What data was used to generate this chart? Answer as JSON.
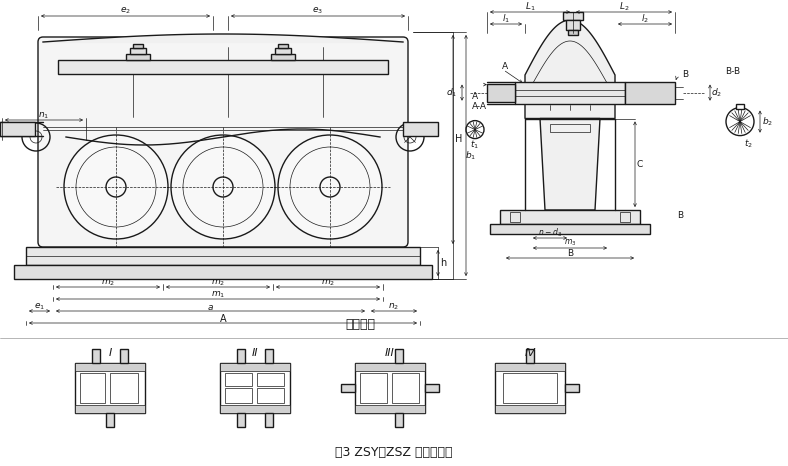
{
  "bg_color": "#ffffff",
  "lc": "#1a1a1a",
  "title_bottom": "图3 ZSY、ZSZ 减速器外形",
  "assembly_label": "装配型式",
  "fig_width": 7.88,
  "fig_height": 4.66,
  "dpi": 100,
  "roman_labels": [
    "I",
    "II",
    "III",
    "IV"
  ]
}
